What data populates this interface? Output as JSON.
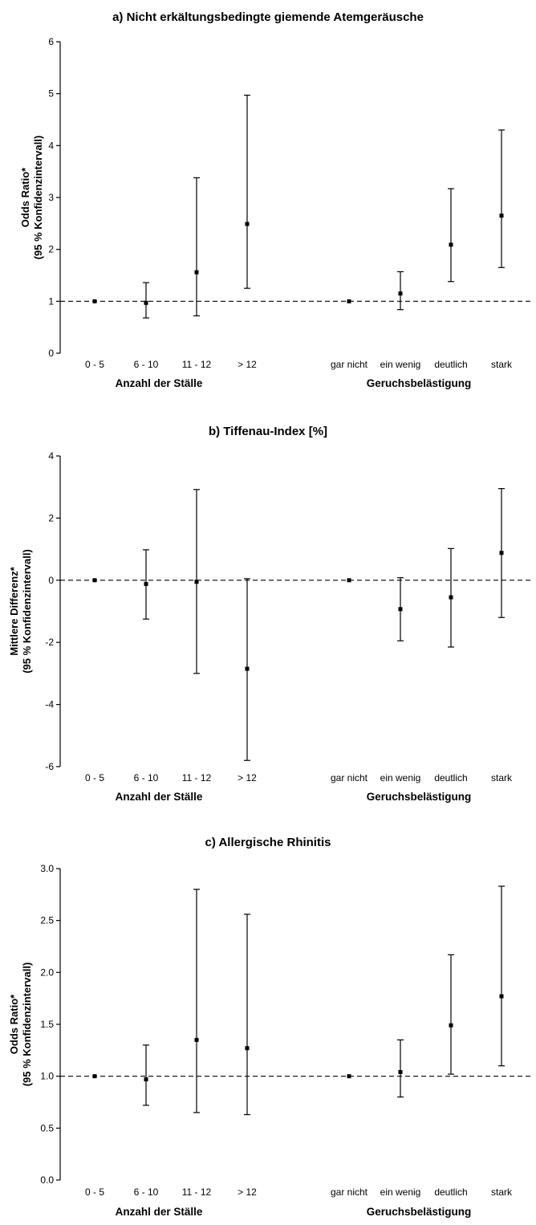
{
  "chart_data": [
    {
      "type": "scatter",
      "title": "a) Nicht erkältungsbedingte giemende Atemgeräusche",
      "ylabel": [
        "Odds Ratio*",
        "(95 % Konfidenzintervall)"
      ],
      "ylim": [
        0,
        6
      ],
      "yticks": [
        "0",
        "1",
        "2",
        "3",
        "4",
        "5",
        "6"
      ],
      "reference_line": 1,
      "grid": false,
      "groups": [
        {
          "label": "Anzahl der Ställe",
          "categories": [
            "0 - 5",
            "6 - 10",
            "11 - 12",
            "> 12"
          ],
          "estimate": [
            1.0,
            0.97,
            1.56,
            2.49
          ],
          "lower": [
            1.0,
            0.68,
            0.72,
            1.25
          ],
          "upper": [
            1.0,
            1.36,
            3.38,
            4.97
          ]
        },
        {
          "label": "Geruchsbelästigung",
          "categories": [
            "gar nicht",
            "ein wenig",
            "deutlich",
            "stark"
          ],
          "estimate": [
            1.0,
            1.15,
            2.09,
            2.65
          ],
          "lower": [
            1.0,
            0.84,
            1.38,
            1.65
          ],
          "upper": [
            1.0,
            1.57,
            3.17,
            4.3
          ]
        }
      ]
    },
    {
      "type": "scatter",
      "title": "b) Tiffenau-Index [%]",
      "ylabel": [
        "Mittlere Differenz*",
        "(95 % Konfidenzintervall)"
      ],
      "ylim": [
        -6,
        4
      ],
      "yticks": [
        "-6",
        "-4",
        "-2",
        "0",
        "2",
        "4"
      ],
      "reference_line": 0,
      "grid": false,
      "groups": [
        {
          "label": "Anzahl der Ställe",
          "categories": [
            "0 - 5",
            "6 - 10",
            "11 - 12",
            "> 12"
          ],
          "estimate": [
            0.0,
            -0.12,
            -0.05,
            -2.85
          ],
          "lower": [
            0.0,
            -1.25,
            -3.0,
            -5.8
          ],
          "upper": [
            0.0,
            0.98,
            2.92,
            0.05
          ]
        },
        {
          "label": "Geruchsbelästigung",
          "categories": [
            "gar nicht",
            "ein wenig",
            "deutlich",
            "stark"
          ],
          "estimate": [
            0.0,
            -0.93,
            -0.55,
            0.88
          ],
          "lower": [
            0.0,
            -1.95,
            -2.15,
            -1.2
          ],
          "upper": [
            0.0,
            0.08,
            1.02,
            2.95
          ]
        }
      ]
    },
    {
      "type": "scatter",
      "title": "c) Allergische Rhinitis",
      "ylabel": [
        "Odds Ratio*",
        "(95 % Konfidenzintervall)"
      ],
      "ylim": [
        0,
        3
      ],
      "yticks": [
        "0.0",
        "0.5",
        "1.0",
        "1.5",
        "2.0",
        "2.5",
        "3.0"
      ],
      "reference_line": 1,
      "grid": false,
      "groups": [
        {
          "label": "Anzahl der Ställe",
          "categories": [
            "0 - 5",
            "6 - 10",
            "11 - 12",
            "> 12"
          ],
          "estimate": [
            1.0,
            0.97,
            1.35,
            1.27
          ],
          "lower": [
            1.0,
            0.72,
            0.65,
            0.63
          ],
          "upper": [
            1.0,
            1.3,
            2.8,
            2.56
          ]
        },
        {
          "label": "Geruchsbelästigung",
          "categories": [
            "gar nicht",
            "ein wenig",
            "deutlich",
            "stark"
          ],
          "estimate": [
            1.0,
            1.04,
            1.49,
            1.77
          ],
          "lower": [
            1.0,
            0.8,
            1.02,
            1.1
          ],
          "upper": [
            1.0,
            1.35,
            2.17,
            2.83
          ]
        }
      ]
    }
  ]
}
